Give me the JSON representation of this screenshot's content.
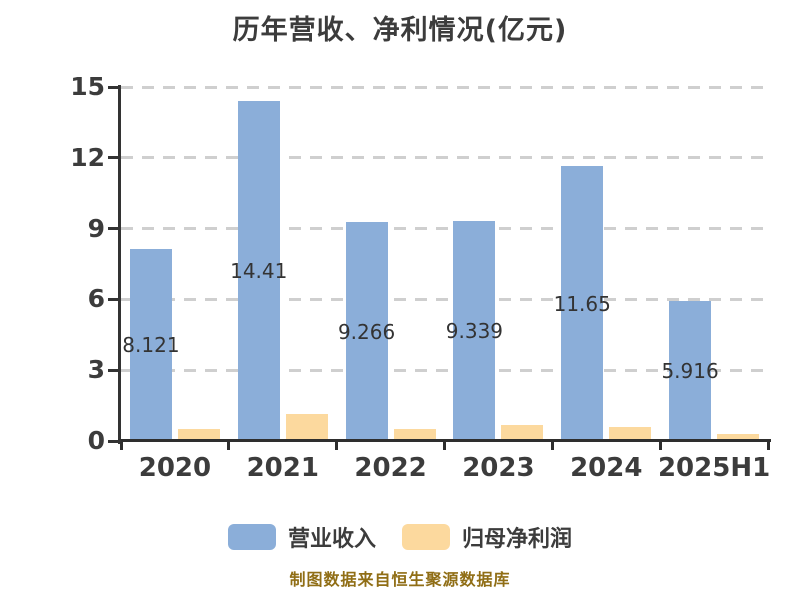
{
  "title": "历年营收、净利情况(亿元)",
  "footer_note": "制图数据来自恒生聚源数据库",
  "legend": {
    "revenue": {
      "label": "营业收入",
      "color": "#8BAED9"
    },
    "net_profit": {
      "label": "归母净利润",
      "color": "#FCD99E"
    }
  },
  "colors": {
    "background": "#ffffff",
    "axis": "#333333",
    "gridline": "#cfcfcf",
    "text": "#3c3c3c",
    "bar_label": "#333333",
    "revenue_bar": "#8BAED9",
    "net_profit_bar": "#FCD99E",
    "footer": "#906E16"
  },
  "chart_data": {
    "type": "bar",
    "title": "历年营收、净利情况(亿元)",
    "categories": [
      "2020",
      "2021",
      "2022",
      "2023",
      "2024",
      "2025H1"
    ],
    "series": [
      {
        "name": "营业收入",
        "color": "#8BAED9",
        "values": [
          8.121,
          14.41,
          9.266,
          9.339,
          11.65,
          5.916
        ],
        "labels": [
          "8.121",
          "14.41",
          "9.266",
          "9.339",
          "11.65",
          "5.916"
        ]
      },
      {
        "name": "归母净利润",
        "color": "#FCD99E",
        "values": [
          0.5,
          1.13,
          0.5,
          0.68,
          0.58,
          0.28
        ],
        "labels": []
      }
    ],
    "ylim": [
      0,
      15
    ],
    "yticks": [
      0,
      3,
      6,
      9,
      12,
      15
    ],
    "grid": "horizontal dashed",
    "legend_position": "bottom",
    "value_labels": "revenue series only, centered vertically inside bars"
  }
}
